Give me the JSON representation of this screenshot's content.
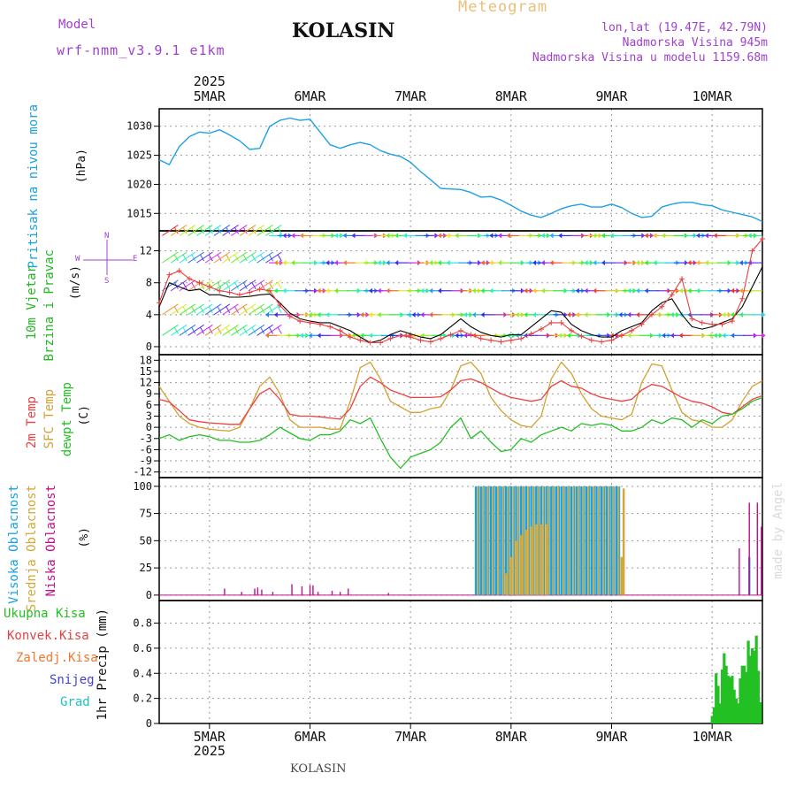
{
  "header": {
    "model_label": "Model",
    "model_value": "wrf-nmm_v3.9.1 e1km",
    "station": "KOLASIN",
    "meteogram": "Meteogram",
    "lonlat": "lon,lat (19.47E, 42.79N)",
    "altitude": "Nadmorska Visina 945m",
    "model_altitude": "Nadmorska Visina u modelu 1159.68m",
    "credit": "made by Angel",
    "footer_station": "KOLASIN"
  },
  "colors": {
    "pressure": "#1ea0e6",
    "temp2m": "#ee4040",
    "sfc": "#d4a030",
    "dewpt": "#22c022",
    "high_cloud": "#1aa0e0",
    "mid_cloud": "#d4a838",
    "low_cloud": "#c0108c",
    "precip_total": "#22c022",
    "precip_conv": "#e84040",
    "freezing": "#f07830",
    "snow": "#4040e0",
    "hail": "#20c0c0",
    "wind_label": "#22b822",
    "wind_compass": "#a040d0"
  },
  "time_axis": {
    "year": "2025",
    "days": [
      "5MAR",
      "6MAR",
      "7MAR",
      "8MAR",
      "9MAR",
      "10MAR"
    ]
  },
  "panels": {
    "pressure": {
      "label": "Pritisak na nivou mora",
      "unit": "(hPa)"
    },
    "wind": {
      "label_1": "10m Vjetar",
      "label_2": "Brzina i Pravac",
      "unit": "(m/s)",
      "compass_n": "N",
      "compass_s": "S",
      "compass_w": "W",
      "compass_e": "E"
    },
    "temp": {
      "label_1": "2m Temp",
      "label_2": "SFC Temp",
      "label_3": "dewpt Temp",
      "unit": "(C)"
    },
    "cloud": {
      "label_1": "Visoka Oblacnost",
      "label_2": "Srednja Oblacnost",
      "label_3": "Niska Oblacnost",
      "unit": "(%)"
    },
    "precip": {
      "legend": [
        "Ukupna Kisa",
        "Konvek.Kisa",
        "Zaledj.Kisa",
        "Snijeg",
        "Grad"
      ],
      "axis_label": "1hr Precip (mm)"
    }
  },
  "chart_data": [
    {
      "type": "line",
      "title": "Pritisak na nivou mora",
      "ylabel": "(hPa)",
      "ylim": [
        1012,
        1033
      ],
      "yticks": [
        1015,
        1020,
        1025,
        1030
      ],
      "x": [
        4.5,
        4.6,
        4.7,
        4.8,
        4.9,
        5.0,
        5.1,
        5.2,
        5.3,
        5.4,
        5.5,
        5.6,
        5.7,
        5.8,
        5.9,
        6.0,
        6.1,
        6.2,
        6.3,
        6.4,
        6.5,
        6.6,
        6.7,
        6.8,
        6.9,
        7.0,
        7.1,
        7.2,
        7.3,
        7.4,
        7.5,
        7.6,
        7.7,
        7.8,
        7.9,
        8.0,
        8.1,
        8.2,
        8.3,
        8.4,
        8.5,
        8.6,
        8.7,
        8.8,
        8.9,
        9.0,
        9.1,
        9.2,
        9.3,
        9.4,
        9.5,
        9.6,
        9.7,
        9.8,
        9.9,
        10.0,
        10.1,
        10.2,
        10.3,
        10.4,
        10.5
      ],
      "series": [
        {
          "name": "",
          "values": [
            1024.2,
            1023.4,
            1026.5,
            1028.2,
            1029.0,
            1028.8,
            1029.4,
            1028.5,
            1027.5,
            1026.0,
            1026.2,
            1030.0,
            1031.0,
            1031.4,
            1031.0,
            1031.2,
            1029.0,
            1026.8,
            1026.2,
            1026.8,
            1027.2,
            1026.8,
            1025.8,
            1025.2,
            1024.8,
            1023.8,
            1022.2,
            1020.8,
            1019.3,
            1019.2,
            1019.1,
            1018.6,
            1017.8,
            1017.9,
            1017.3,
            1016.4,
            1015.4,
            1014.7,
            1014.3,
            1015.0,
            1015.8,
            1016.3,
            1016.6,
            1016.1,
            1016.1,
            1016.6,
            1016.0,
            1015.0,
            1014.3,
            1014.5,
            1016.1,
            1016.6,
            1016.9,
            1016.9,
            1016.5,
            1016.3,
            1015.6,
            1015.2,
            1014.8,
            1014.4,
            1013.6
          ]
        }
      ]
    },
    {
      "type": "line",
      "title": "10m Vjetar Brzina i Pravac",
      "ylabel": "(m/s)",
      "ylim": [
        -1,
        14.5
      ],
      "yticks": [
        0,
        4,
        8,
        12
      ],
      "x": [
        4.5,
        4.6,
        4.7,
        4.8,
        4.9,
        5.0,
        5.1,
        5.2,
        5.3,
        5.4,
        5.5,
        5.6,
        5.7,
        5.8,
        5.9,
        6.0,
        6.1,
        6.2,
        6.3,
        6.4,
        6.5,
        6.6,
        6.7,
        6.8,
        6.9,
        7.0,
        7.1,
        7.2,
        7.3,
        7.4,
        7.5,
        7.6,
        7.7,
        7.8,
        7.9,
        8.0,
        8.1,
        8.2,
        8.3,
        8.4,
        8.5,
        8.6,
        8.7,
        8.8,
        8.9,
        9.0,
        9.1,
        9.2,
        9.3,
        9.4,
        9.5,
        9.6,
        9.7,
        9.8,
        9.9,
        10.0,
        10.1,
        10.2,
        10.3,
        10.4,
        10.5
      ],
      "series": [
        {
          "name": "",
          "values": [
            5,
            8,
            7.5,
            7,
            7.2,
            6.5,
            6.5,
            6.2,
            6.2,
            6.3,
            6.5,
            6.6,
            5.5,
            4.2,
            3.5,
            3.2,
            3.0,
            3.0,
            2.5,
            2.0,
            1.2,
            0.5,
            0.8,
            1.5,
            2.0,
            1.6,
            1.2,
            1.0,
            1.5,
            2.5,
            3.5,
            2.5,
            1.8,
            1.4,
            1.2,
            1.5,
            1.5,
            2.5,
            3.5,
            4.5,
            4.3,
            2.8,
            2.0,
            1.5,
            1.2,
            1.2,
            2.0,
            2.5,
            3.0,
            4.5,
            5.5,
            6.0,
            4.0,
            2.5,
            2.2,
            2.5,
            3.0,
            3.5,
            5.0,
            7.5,
            10.0
          ]
        },
        {
          "name": "",
          "values": [
            5.5,
            9,
            9.5,
            8.5,
            8,
            7.5,
            7,
            6.8,
            6.5,
            6.8,
            7.2,
            7,
            5.2,
            3.8,
            3.2,
            3.0,
            2.8,
            2.5,
            2.0,
            1.2,
            0.8,
            0.5,
            0.5,
            1.0,
            1.4,
            1.2,
            0.8,
            0.6,
            1.0,
            1.5,
            2.0,
            1.5,
            1.0,
            0.8,
            0.6,
            0.8,
            1.0,
            1.6,
            2.2,
            3.0,
            3.0,
            2.0,
            1.3,
            0.8,
            0.6,
            0.8,
            1.4,
            2.0,
            2.8,
            4.0,
            5.0,
            6.5,
            8.5,
            3.5,
            3.0,
            2.8,
            2.8,
            3.2,
            6.0,
            12.0,
            13.5
          ]
        }
      ]
    },
    {
      "type": "line",
      "title": "2m Temp / SFC Temp / dewpt Temp",
      "ylabel": "(C)",
      "ylim": [
        -13.5,
        19.5
      ],
      "yticks": [
        18,
        15,
        12,
        9,
        6,
        3,
        0,
        -3,
        -6,
        -9,
        -12
      ],
      "x": [
        4.5,
        4.6,
        4.7,
        4.8,
        4.9,
        5.0,
        5.1,
        5.2,
        5.3,
        5.4,
        5.5,
        5.6,
        5.7,
        5.8,
        5.9,
        6.0,
        6.1,
        6.2,
        6.3,
        6.4,
        6.5,
        6.6,
        6.7,
        6.8,
        6.9,
        7.0,
        7.1,
        7.2,
        7.3,
        7.4,
        7.5,
        7.6,
        7.7,
        7.8,
        7.9,
        8.0,
        8.1,
        8.2,
        8.3,
        8.4,
        8.5,
        8.6,
        8.7,
        8.8,
        8.9,
        9.0,
        9.1,
        9.2,
        9.3,
        9.4,
        9.5,
        9.6,
        9.7,
        9.8,
        9.9,
        10.0,
        10.1,
        10.2,
        10.3,
        10.4,
        10.5
      ],
      "series": [
        {
          "name": "2m Temp",
          "values": [
            7.5,
            6.8,
            4.5,
            2.0,
            1.5,
            1.2,
            1.0,
            0.8,
            0.8,
            5.0,
            9.0,
            10.5,
            7.5,
            3.5,
            3.0,
            3.0,
            2.8,
            2.5,
            2.2,
            5.0,
            11.0,
            13.5,
            12.0,
            10.0,
            9.0,
            8.0,
            8.0,
            8.0,
            8.2,
            10.0,
            12.5,
            13.0,
            12.0,
            10.5,
            9.0,
            8.0,
            7.5,
            7.0,
            7.5,
            11.0,
            12.5,
            11.0,
            10.5,
            9.0,
            8.0,
            7.5,
            7.0,
            7.5,
            10.0,
            11.5,
            11.0,
            9.5,
            8.0,
            7.0,
            6.5,
            5.5,
            4.0,
            3.5,
            5.5,
            7.5,
            8.5
          ]
        },
        {
          "name": "SFC Temp",
          "values": [
            11.0,
            7.0,
            3.0,
            1.0,
            0.0,
            -0.5,
            -0.8,
            -1.0,
            0.0,
            5.0,
            11.0,
            13.5,
            9.0,
            2.0,
            0.0,
            0.0,
            0.0,
            -0.5,
            -0.5,
            7.0,
            16.0,
            17.5,
            13.0,
            7.0,
            5.5,
            4.0,
            4.0,
            5.0,
            5.5,
            10.0,
            16.5,
            17.5,
            14.5,
            8.0,
            4.5,
            2.0,
            0.5,
            0.0,
            3.0,
            13.0,
            17.5,
            14.5,
            9.0,
            5.0,
            3.0,
            2.5,
            2.0,
            3.5,
            12.0,
            17.0,
            16.5,
            10.0,
            4.0,
            2.0,
            1.5,
            0.0,
            0.0,
            2.0,
            7.0,
            11.0,
            12.5
          ]
        },
        {
          "name": "dewpt Temp",
          "values": [
            -3.0,
            -2.0,
            -3.5,
            -2.5,
            -2.0,
            -2.5,
            -3.5,
            -3.5,
            -4.0,
            -4.0,
            -3.5,
            -2.0,
            0.0,
            -1.5,
            -3.0,
            -3.5,
            -2.0,
            -2.0,
            -1.0,
            2.0,
            1.0,
            2.5,
            -3.0,
            -8.0,
            -11.0,
            -8.0,
            -7.0,
            -6.0,
            -4.0,
            0.0,
            2.5,
            -3.0,
            -1.0,
            -4.0,
            -6.5,
            -6.0,
            -3.0,
            -4.0,
            -2.0,
            -1.0,
            0.0,
            -1.0,
            1.0,
            0.5,
            1.0,
            0.5,
            -1.0,
            -1.0,
            0.0,
            2.0,
            1.0,
            2.5,
            2.0,
            0.0,
            2.0,
            1.0,
            3.0,
            3.5,
            5.0,
            7.0,
            8.0
          ]
        }
      ]
    },
    {
      "type": "bar",
      "title": "Visoka / Srednja / Niska Oblacnost",
      "ylabel": "(%)",
      "ylim": [
        -5,
        108
      ],
      "yticks": [
        0,
        25,
        50,
        75,
        100
      ],
      "series": [
        {
          "name": "Visoka Oblacnost",
          "x_range": [
            7.65,
            9.08
          ],
          "value": 100,
          "step": 0.025,
          "extra": [
            [
              7.7,
              65
            ],
            [
              10.37,
              35
            ]
          ]
        },
        {
          "name": "Srednja Oblacnost",
          "x_range": [
            7.67,
            9.1
          ],
          "value": 100,
          "step": 0.05,
          "partial": [
            [
              7.95,
              20
            ],
            [
              8.0,
              35
            ],
            [
              8.05,
              50
            ],
            [
              8.1,
              55
            ],
            [
              8.15,
              60
            ],
            [
              8.2,
              63
            ],
            [
              8.25,
              65
            ],
            [
              8.3,
              65
            ],
            [
              8.35,
              65
            ],
            [
              9.1,
              35
            ],
            [
              9.12,
              98
            ]
          ]
        },
        {
          "name": "Niska Oblacnost",
          "x": [
            5.15,
            5.32,
            5.45,
            5.48,
            5.52,
            5.63,
            5.82,
            5.92,
            6.0,
            6.03,
            6.08,
            6.22,
            6.3,
            6.38,
            6.78,
            10.27,
            10.37,
            10.45,
            10.49
          ],
          "values": [
            6,
            3,
            6,
            7,
            5,
            3,
            10,
            8,
            9,
            9,
            3,
            4,
            3,
            6,
            2,
            43,
            85,
            85,
            63
          ]
        }
      ]
    },
    {
      "type": "bar",
      "title": "1hr Precip",
      "ylabel": "1hr Precip (mm)",
      "ylim": [
        0,
        0.98
      ],
      "yticks": [
        0,
        0.2,
        0.4,
        0.6,
        0.8
      ],
      "series": [
        {
          "name": "Ukupna Kisa",
          "x": [
            10.0,
            10.02,
            10.04,
            10.06,
            10.08,
            10.1,
            10.12,
            10.14,
            10.16,
            10.18,
            10.2,
            10.22,
            10.24,
            10.26,
            10.28,
            10.3,
            10.32,
            10.34,
            10.36,
            10.38,
            10.4,
            10.42,
            10.44,
            10.46,
            10.48
          ],
          "values": [
            0.06,
            0.13,
            0.4,
            0.3,
            0.16,
            0.43,
            0.56,
            0.46,
            0.38,
            0.37,
            0.38,
            0.27,
            0.2,
            0.16,
            0.36,
            0.46,
            0.46,
            0.41,
            0.66,
            0.54,
            0.6,
            0.58,
            0.7,
            0.42,
            0.17
          ]
        }
      ]
    }
  ]
}
